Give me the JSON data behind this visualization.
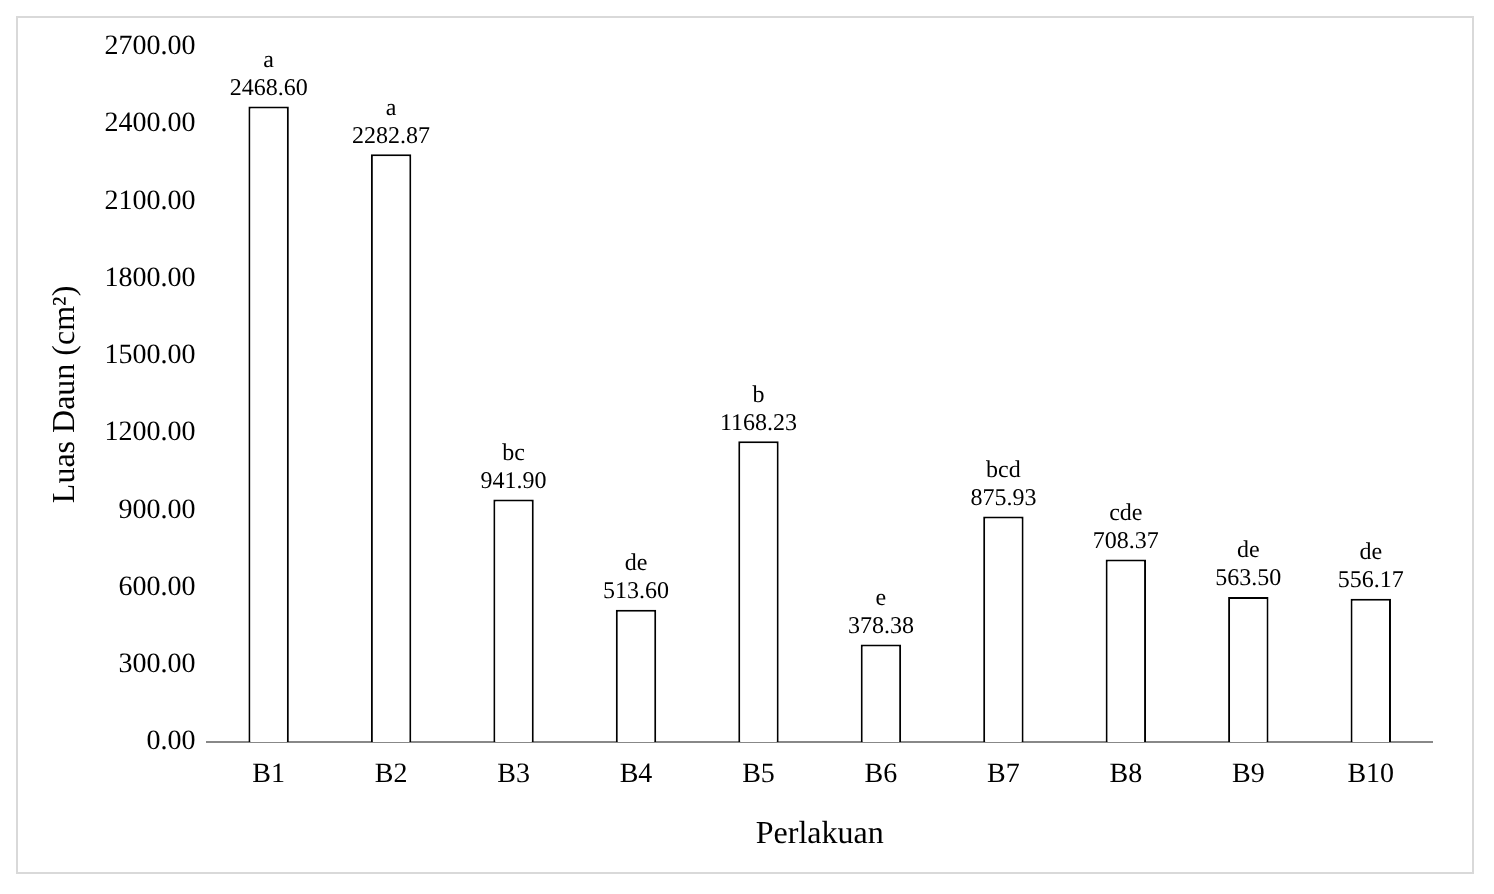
{
  "chart_data": {
    "type": "bar",
    "xlabel": "Perlakuan",
    "ylabel": "Luas Daun (cm²)",
    "categories": [
      "B1",
      "B2",
      "B3",
      "B4",
      "B5",
      "B6",
      "B7",
      "B8",
      "B9",
      "B10"
    ],
    "values": [
      2468.6,
      2282.87,
      941.9,
      513.6,
      1168.23,
      378.38,
      875.93,
      708.37,
      563.5,
      556.17
    ],
    "value_labels": [
      "2468.60",
      "2282.87",
      "941.90",
      "513.60",
      "1168.23",
      "378.38",
      "875.93",
      "708.37",
      "563.50",
      "556.17"
    ],
    "color": "#ffffff",
    "ylim": [
      0,
      2700
    ],
    "yticks": [
      {
        "value": 0,
        "label": "0.00"
      },
      {
        "value": 300,
        "label": "300.00"
      },
      {
        "value": 600,
        "label": "600.00"
      },
      {
        "value": 900,
        "label": "900.00"
      },
      {
        "value": 1200,
        "label": "1200.00"
      },
      {
        "value": 1500,
        "label": "1500.00"
      },
      {
        "value": 1800,
        "label": "1800.00"
      },
      {
        "value": 2100,
        "label": "2100.00"
      },
      {
        "value": 2400,
        "label": "2400.00"
      },
      {
        "value": 2700,
        "label": "2700.00"
      }
    ],
    "annotations": [
      {
        "text": "a",
        "x": "B1",
        "y": 2468.6
      },
      {
        "text": "a",
        "x": "B2",
        "y": 2282.87
      },
      {
        "text": "bc",
        "x": "B3",
        "y": 941.9
      },
      {
        "text": "de",
        "x": "B4",
        "y": 513.6
      },
      {
        "text": "b",
        "x": "B5",
        "y": 1168.23
      },
      {
        "text": "e",
        "x": "B6",
        "y": 378.38
      },
      {
        "text": "bcd",
        "x": "B7",
        "y": 875.93
      },
      {
        "text": "cde",
        "x": "B8",
        "y": 708.37
      },
      {
        "text": "de",
        "x": "B9",
        "y": 563.5
      },
      {
        "text": "de",
        "x": "B10",
        "y": 556.17
      }
    ],
    "grid": false,
    "legend": false
  }
}
